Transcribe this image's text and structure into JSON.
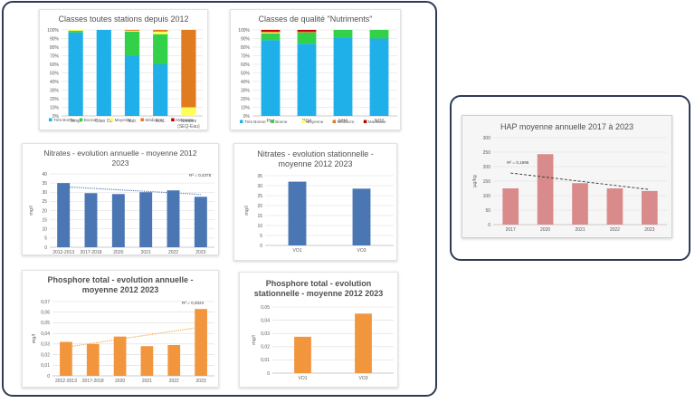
{
  "colors": {
    "frame": "#2e3b57",
    "tres_bonne": "#1fb0ea",
    "bonne": "#33d14a",
    "moyenne": "#ffff55",
    "mediocre": "#e07b1f",
    "mauvaise": "#c00000",
    "nitrate_bar": "#4a77b4",
    "phos_bar": "#f2963e",
    "hap_bar": "#d98b8b",
    "nitrate_trend": "#4a77b4",
    "phos_trend": "#f2a03e",
    "hap_trend": "#333333"
  },
  "chart_data": [
    {
      "id": "classes_stations",
      "type": "stacked_bar",
      "title": "Classes toutes stations depuis 2012",
      "categories": [
        "Temp.",
        "Bilan O2",
        "Nutr.",
        "Acid.",
        "Nitrates\n(SEQ-Eau)"
      ],
      "ylim": [
        0,
        100
      ],
      "y_ticks": [
        "0%",
        "10%",
        "20%",
        "30%",
        "40%",
        "50%",
        "60%",
        "70%",
        "80%",
        "90%",
        "100%"
      ],
      "series": [
        {
          "name": "Très Bonne",
          "color_key": "tres_bonne",
          "values": [
            97,
            100,
            70,
            60,
            0
          ]
        },
        {
          "name": "Bonne",
          "color_key": "bonne",
          "values": [
            2,
            0,
            28,
            35,
            0
          ]
        },
        {
          "name": "Moyenne",
          "color_key": "moyenne",
          "values": [
            1,
            0,
            1,
            3,
            10
          ]
        },
        {
          "name": "Médiocre",
          "color_key": "mediocre",
          "values": [
            0,
            0,
            1,
            2,
            90
          ]
        },
        {
          "name": "Mauvaise",
          "color_key": "mauvaise",
          "values": [
            0,
            0,
            0,
            0,
            0
          ]
        }
      ]
    },
    {
      "id": "classes_nutriments",
      "type": "stacked_bar",
      "title": "Classes de qualité \"Nutriments\"",
      "categories": [
        "Ptot",
        "PO4",
        "NH4",
        "NO2"
      ],
      "ylim": [
        0,
        100
      ],
      "y_ticks": [
        "0%",
        "10%",
        "20%",
        "30%",
        "40%",
        "50%",
        "60%",
        "70%",
        "80%",
        "90%",
        "100%"
      ],
      "series": [
        {
          "name": "Très Bonne",
          "color_key": "tres_bonne",
          "values": [
            88,
            84,
            91,
            90
          ]
        },
        {
          "name": "Bonne",
          "color_key": "bonne",
          "values": [
            8,
            13,
            9,
            10
          ]
        },
        {
          "name": "Moyenne",
          "color_key": "moyenne",
          "values": [
            1,
            0,
            0,
            0
          ]
        },
        {
          "name": "Médiocre",
          "color_key": "mediocre",
          "values": [
            1,
            1,
            0,
            0
          ]
        },
        {
          "name": "Mauvaise",
          "color_key": "mauvaise",
          "values": [
            2,
            2,
            0,
            0
          ]
        }
      ]
    },
    {
      "id": "nitrates_annuel",
      "type": "bar",
      "title": "Nitrates - evolution annuelle - moyenne 2012 2023",
      "categories": [
        "2012-2013",
        "2017-2018",
        "2020",
        "2021",
        "2022",
        "2023"
      ],
      "values": [
        35,
        29.5,
        29,
        30,
        31,
        27.5
      ],
      "ylim": [
        0,
        40
      ],
      "y_ticks": [
        "0",
        "5",
        "10",
        "15",
        "20",
        "25",
        "30",
        "35",
        "40"
      ],
      "ylabel": "mg/l",
      "trend": {
        "start": 33,
        "end": 28.8,
        "label": "R² = 0,4375"
      }
    },
    {
      "id": "nitrates_station",
      "type": "bar",
      "title": "Nitrates - evolution stationnelle - moyenne 2012 2023",
      "categories": [
        "VO1",
        "VO3"
      ],
      "values": [
        32,
        28.5
      ],
      "ylim": [
        0,
        35
      ],
      "y_ticks": [
        "0",
        "5",
        "10",
        "15",
        "20",
        "25",
        "30",
        "35"
      ],
      "ylabel": "mg/l"
    },
    {
      "id": "phosphore_annuel",
      "type": "bar",
      "title": "Phosphore total - evolution annuelle - moyenne 2012 2023",
      "categories": [
        "2012-2013",
        "2017-2018",
        "2020",
        "2021",
        "2022",
        "2023"
      ],
      "values": [
        0.032,
        0.03,
        0.037,
        0.028,
        0.029,
        0.063
      ],
      "ylim": [
        0,
        0.07
      ],
      "y_ticks": [
        "0",
        "0,01",
        "0,02",
        "0,03",
        "0,04",
        "0,05",
        "0,06",
        "0,07"
      ],
      "ylabel": "mg/l",
      "trend": {
        "start": 0.027,
        "end": 0.046,
        "label": "R² = 0,3024"
      }
    },
    {
      "id": "phosphore_station",
      "type": "bar",
      "title": "Phosphore total - evolution stationnelle - moyenne 2012 2023",
      "categories": [
        "VO1",
        "VO3"
      ],
      "values": [
        0.0275,
        0.045
      ],
      "ylim": [
        0,
        0.05
      ],
      "y_ticks": [
        "0",
        "0,01",
        "0,02",
        "0,03",
        "0,04",
        "0,05"
      ],
      "ylabel": "mg/l"
    },
    {
      "id": "hap_annuel",
      "type": "bar",
      "title": "HAP moyenne annuelle 2017 à 2023",
      "categories": [
        "2017",
        "2020",
        "2021",
        "2022",
        "2023"
      ],
      "values": [
        125,
        243,
        143,
        125,
        116
      ],
      "ylim": [
        0,
        300
      ],
      "y_ticks": [
        "0",
        "50",
        "100",
        "150",
        "200",
        "250",
        "300"
      ],
      "ylabel": "µg/kg",
      "trend": {
        "start": 178,
        "end": 121,
        "label": "R² = 0,1996"
      }
    }
  ]
}
